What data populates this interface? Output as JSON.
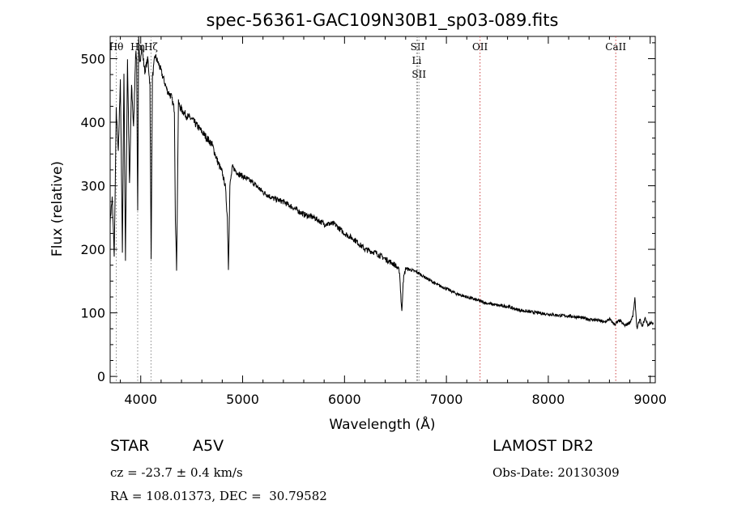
{
  "chart_data": {
    "type": "line",
    "title": "spec-56361-GAC109N30B1_sp03-089.fits",
    "xlabel": "Wavelength (Å)",
    "ylabel": "Flux (relative)",
    "xlim": [
      3700,
      9050
    ],
    "ylim": [
      -10,
      535
    ],
    "xticks": [
      "4000",
      "5000",
      "6000",
      "7000",
      "8000",
      "9000"
    ],
    "yticks": [
      "0",
      "100",
      "200",
      "300",
      "400",
      "500"
    ],
    "series": [
      {
        "x": [
          3700,
          3720,
          3740,
          3760,
          3780,
          3800,
          3820,
          3835,
          3850,
          3870,
          3890,
          3910,
          3930,
          3950,
          3960,
          3970,
          3980,
          3990,
          4010,
          4040,
          4070,
          4090,
          4102,
          4115,
          4140,
          4180,
          4220,
          4260,
          4300,
          4330,
          4340,
          4352,
          4370,
          4400,
          4450,
          4500,
          4550,
          4600,
          4650,
          4700,
          4750,
          4800,
          4830,
          4850,
          4861,
          4875,
          4900,
          4950,
          5000,
          5100,
          5200,
          5300,
          5400,
          5500,
          5600,
          5700,
          5800,
          5900,
          6000,
          6100,
          6200,
          6300,
          6400,
          6500,
          6540,
          6555,
          6563,
          6575,
          6600,
          6700,
          6800,
          6900,
          7000,
          7100,
          7200,
          7300,
          7400,
          7500,
          7600,
          7700,
          7800,
          7900,
          8000,
          8100,
          8200,
          8300,
          8400,
          8500,
          8550,
          8600,
          8650,
          8700,
          8750,
          8800,
          8830,
          8850,
          8870,
          8900,
          8920,
          8950,
          8980,
          9000,
          9030
        ],
        "y": [
          245,
          280,
          190,
          420,
          350,
          470,
          200,
          480,
          180,
          500,
          300,
          460,
          390,
          510,
          500,
          260,
          530,
          490,
          520,
          480,
          500,
          460,
          190,
          470,
          505,
          490,
          470,
          450,
          440,
          420,
          250,
          170,
          430,
          420,
          410,
          405,
          395,
          385,
          375,
          365,
          340,
          320,
          300,
          250,
          170,
          300,
          330,
          320,
          315,
          305,
          290,
          280,
          275,
          265,
          255,
          250,
          240,
          240,
          225,
          215,
          200,
          195,
          185,
          175,
          165,
          120,
          100,
          150,
          170,
          165,
          155,
          145,
          138,
          130,
          125,
          120,
          115,
          112,
          110,
          105,
          102,
          100,
          98,
          96,
          95,
          93,
          90,
          88,
          85,
          90,
          82,
          88,
          80,
          85,
          95,
          122,
          75,
          90,
          78,
          92,
          80,
          85,
          82
        ]
      }
    ],
    "lines": [
      {
        "wavelength": 3760,
        "color": "#888888",
        "labels": [
          "Hθ"
        ]
      },
      {
        "wavelength": 3970,
        "color": "#888888",
        "labels": [
          "Hη"
        ]
      },
      {
        "wavelength": 4101,
        "color": "#888888",
        "labels": [
          "Hζ"
        ]
      },
      {
        "wavelength": 6717,
        "color": "#888888",
        "labels": [
          "SII"
        ]
      },
      {
        "wavelength": 6708,
        "color": "#888888",
        "labels": [
          "Li"
        ]
      },
      {
        "wavelength": 6731,
        "color": "#888888",
        "labels": [
          "SII"
        ]
      },
      {
        "wavelength": 7330,
        "color": "#cc4444",
        "labels": [
          "OII"
        ]
      },
      {
        "wavelength": 8662,
        "color": "#cc4444",
        "labels": [
          "CaII"
        ]
      }
    ]
  },
  "info": {
    "object_class": "STAR",
    "subclass": "A5V",
    "survey": "LAMOST DR2",
    "redshift": "cz = -23.7 ± 0.4 km/s",
    "obs_date": "Obs-Date: 20130309",
    "coords": "RA = 108.01373, DEC =  30.79582"
  }
}
